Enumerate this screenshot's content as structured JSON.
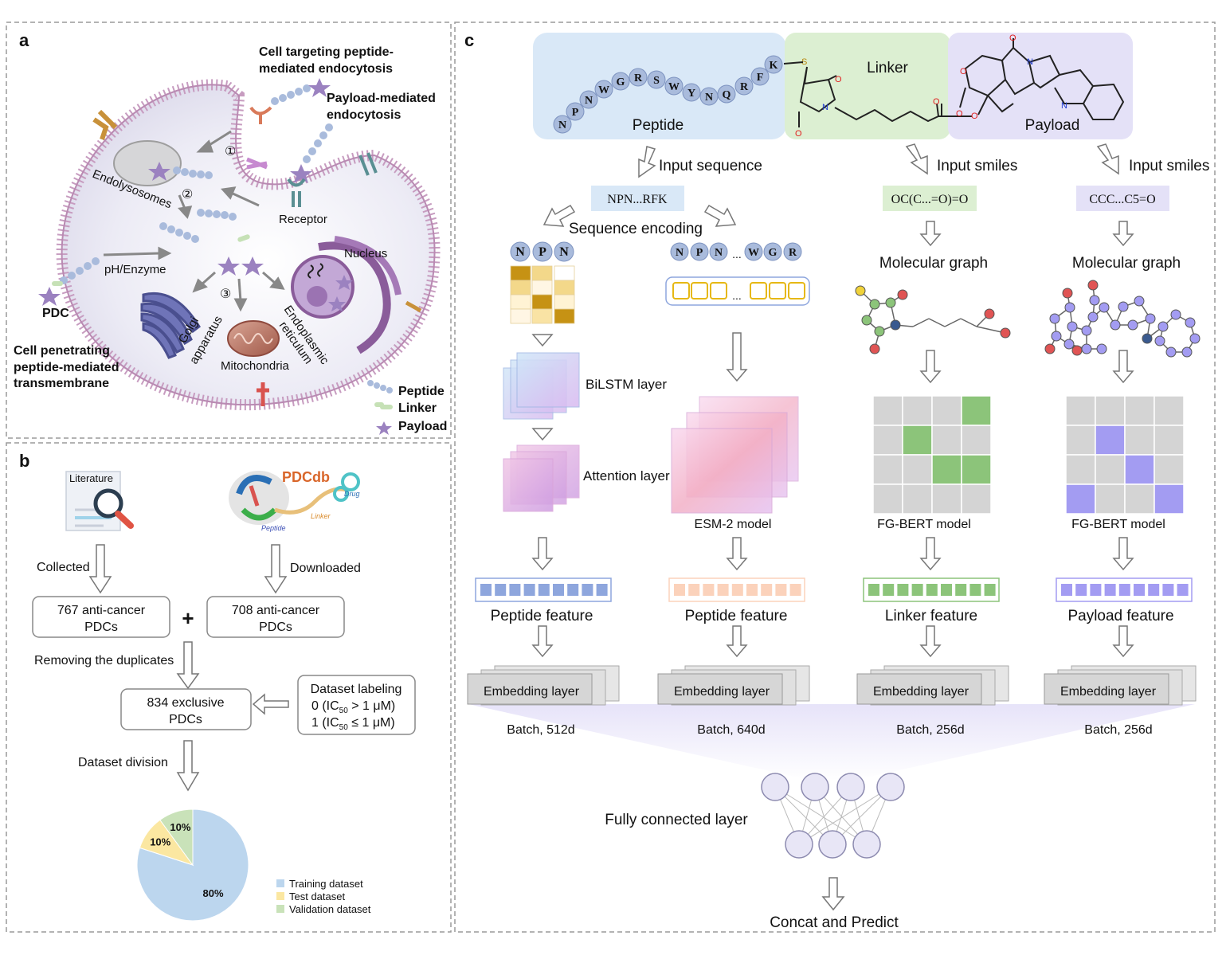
{
  "panel_a": {
    "label": "a",
    "cell_targeting": [
      "Cell targeting peptide-",
      "mediated endocytosis"
    ],
    "payload_mediated": [
      "Payload-mediated",
      "endocytosis"
    ],
    "endolysosomes": "Endolysosomes",
    "receptor": "Receptor",
    "ph_enzyme": "pH/Enzyme",
    "nucleus": "Nucleus",
    "pdc": "PDC",
    "golgi": [
      "Golgi",
      "apparatus"
    ],
    "er": [
      "Endoplasmic",
      "reticulum"
    ],
    "mitochondria": "Mitochondria",
    "cell_penetrating": [
      "Cell penetrating",
      "peptide-mediated",
      "transmembrane"
    ],
    "step1": "①",
    "step2": "②",
    "step3": "③",
    "legend": {
      "peptide": "Peptide",
      "linker": "Linker",
      "payload": "Payload"
    }
  },
  "panel_b": {
    "label": "b",
    "literature": "Literature",
    "pdcdb_logo": "PDCdb",
    "pdcdb_drug": "Drug",
    "pdcdb_linker": "Linker",
    "pdcdb_peptide": "Peptide",
    "collected": "Collected",
    "downloaded": "Downloaded",
    "box_767": [
      "767 anti-cancer",
      "PDCs"
    ],
    "box_708": [
      "708 anti-cancer",
      "PDCs"
    ],
    "plus": "+",
    "removing": "Removing the duplicates",
    "box_834": [
      "834 exclusive",
      "PDCs"
    ],
    "labeling_title": "Dataset labeling",
    "labeling_0": [
      "0 (IC",
      "50",
      " > 1 μM)"
    ],
    "labeling_1": [
      "1 (IC",
      "50",
      " ≤ 1 μM)"
    ],
    "division": "Dataset division"
  },
  "chart_data": {
    "type": "pie",
    "categories": [
      "Training dataset",
      "Test dataset",
      "Validation dataset"
    ],
    "values": [
      80,
      10,
      10
    ],
    "labels": [
      "80%",
      "10%",
      "10%"
    ],
    "colors": [
      "#bcd6ee",
      "#fbe7a1",
      "#c9e2b9"
    ],
    "legend_position": "bottom-right"
  },
  "panel_c": {
    "label": "c",
    "peptide_region": "Peptide",
    "linker_region": "Linker",
    "payload_region": "Payload",
    "peptide_letters": [
      "N",
      "P",
      "N",
      "W",
      "G",
      "R",
      "S",
      "W",
      "Y",
      "N",
      "Q",
      "R",
      "F",
      "K"
    ],
    "atom_S": "S",
    "atom_N": "N",
    "atom_O": "O",
    "input_sequence": "Input sequence",
    "input_smiles_1": "Input smiles",
    "input_smiles_2": "Input smiles",
    "seq_code": "NPN...RFK",
    "linker_smiles": "OC(C...=O)=O",
    "payload_smiles": "CCC...C5=O",
    "sequence_encoding": "Sequence encoding",
    "npn": [
      "N",
      "P",
      "N"
    ],
    "npn_wgr": [
      "N",
      "P",
      "N",
      "...",
      "W",
      "G",
      "R"
    ],
    "ellipsis": "...",
    "molecular_graph_1": "Molecular graph",
    "molecular_graph_2": "Molecular graph",
    "bilstm": "BiLSTM layer",
    "attention": "Attention layer",
    "esm2": "ESM-2 model",
    "fgbert_1": "FG-BERT model",
    "fgbert_2": "FG-BERT model",
    "peptide_feature_1": "Peptide feature",
    "peptide_feature_2": "Peptide feature",
    "linker_feature": "Linker feature",
    "payload_feature": "Payload feature",
    "embedding": [
      "Embedding layer",
      "Embedding layer",
      "Embedding layer",
      "Embedding layer"
    ],
    "batch": [
      "Batch, 512d",
      "Batch, 640d",
      "Batch, 256d",
      "Batch, 256d"
    ],
    "fully_connected": "Fully connected layer",
    "concat_predict": "Concat and Predict"
  },
  "colors": {
    "membrane": "#c79cc0",
    "peptide_bead": "#a9bbdc",
    "payload_star": "#9b82c0",
    "peptide_bg": "#d9e8f7",
    "linker_bg": "#dcefd2",
    "payload_bg": "#e4e1f7",
    "green_cell": "#8cc47a",
    "purple_cell": "#a39cf2",
    "gold": "#c69214",
    "blue_feature": "#8ea6dd",
    "orange_feature": "#fbd2bb"
  }
}
